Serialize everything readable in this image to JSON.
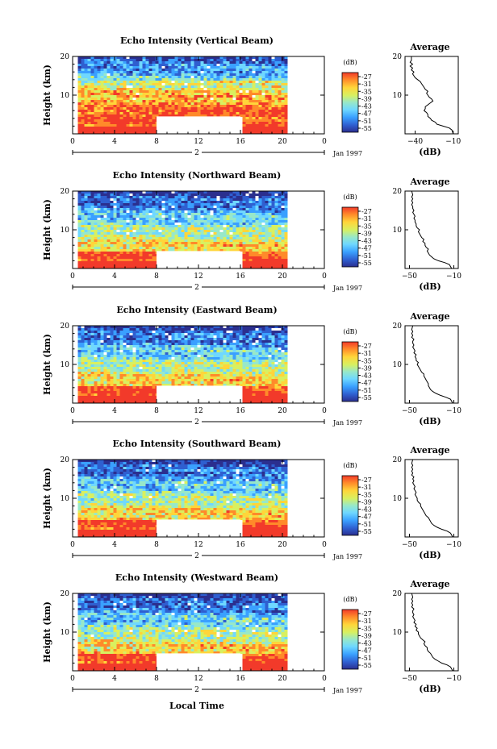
{
  "figure": {
    "bottom_label": "Local Time",
    "date_label": "Jan 1997"
  },
  "chart_data": [
    {
      "type": "heatmap",
      "title": "Echo Intensity (Vertical Beam)",
      "ylabel": "Height (km)",
      "x_ticks": [
        "0",
        "4",
        "8",
        "12",
        "16",
        "20",
        "0"
      ],
      "day_label": "2",
      "y_ticks": [
        "20",
        "10"
      ],
      "xlim": [
        0,
        24
      ],
      "ylim": [
        0,
        20
      ],
      "data_x_range": [
        0.5,
        20.5
      ],
      "gap": {
        "x": [
          8,
          16
        ],
        "y": [
          0,
          4.5
        ]
      },
      "colorbar": {
        "unit": "(dB)",
        "ticks": [
          "-27",
          "-31",
          "-35",
          "-39",
          "-43",
          "-47",
          "-51",
          "-55"
        ]
      },
      "average": {
        "title": "Average",
        "xlabel": "(dB)",
        "xticks": [
          "-40",
          "-10"
        ],
        "xlim": [
          -48,
          -6
        ],
        "yticks": [
          "20",
          "10"
        ],
        "profile": [
          [
            -10,
            0
          ],
          [
            -11,
            1
          ],
          [
            -13,
            1.5
          ],
          [
            -18,
            2
          ],
          [
            -23,
            2.5
          ],
          [
            -24,
            3
          ],
          [
            -27,
            3.5
          ],
          [
            -28,
            4
          ],
          [
            -30,
            4.5
          ],
          [
            -30,
            5
          ],
          [
            -31,
            5.5
          ],
          [
            -33,
            6
          ],
          [
            -32,
            6.5
          ],
          [
            -32,
            7
          ],
          [
            -30,
            7.5
          ],
          [
            -28,
            8
          ],
          [
            -26,
            8.5
          ],
          [
            -27,
            9
          ],
          [
            -29,
            9.5
          ],
          [
            -30,
            10
          ],
          [
            -31,
            10.5
          ],
          [
            -30,
            11
          ],
          [
            -32,
            11.5
          ],
          [
            -33,
            12
          ],
          [
            -34,
            12.5
          ],
          [
            -35,
            13
          ],
          [
            -36,
            13.5
          ],
          [
            -38,
            14
          ],
          [
            -40,
            14.5
          ],
          [
            -41,
            15
          ],
          [
            -42,
            15.5
          ],
          [
            -41,
            16
          ],
          [
            -43,
            16.5
          ],
          [
            -42,
            17
          ],
          [
            -44,
            17.5
          ],
          [
            -42,
            18
          ],
          [
            -44,
            18.5
          ],
          [
            -43,
            19
          ],
          [
            -43,
            20
          ]
        ]
      }
    },
    {
      "type": "heatmap",
      "title": "Echo Intensity (Northward Beam)",
      "ylabel": "Height (km)",
      "x_ticks": [
        "0",
        "4",
        "8",
        "12",
        "16",
        "20",
        "0"
      ],
      "day_label": "2",
      "y_ticks": [
        "20",
        "10"
      ],
      "xlim": [
        0,
        24
      ],
      "ylim": [
        0,
        20
      ],
      "data_x_range": [
        0.5,
        20.5
      ],
      "gap": {
        "x": [
          8,
          16
        ],
        "y": [
          0,
          4.5
        ]
      },
      "colorbar": {
        "unit": "(dB)",
        "ticks": [
          "-27",
          "-31",
          "-35",
          "-39",
          "-43",
          "-47",
          "-51",
          "-55"
        ]
      },
      "average": {
        "title": "Average",
        "xlabel": "(dB)",
        "xticks": [
          "-50",
          "-10"
        ],
        "xlim": [
          -54,
          -6
        ],
        "yticks": [
          "20",
          "10"
        ],
        "profile": [
          [
            -12,
            0
          ],
          [
            -14,
            1
          ],
          [
            -18,
            1.5
          ],
          [
            -24,
            2
          ],
          [
            -28,
            2.5
          ],
          [
            -30,
            3
          ],
          [
            -32,
            3.5
          ],
          [
            -33,
            4
          ],
          [
            -34,
            4.5
          ],
          [
            -33,
            5
          ],
          [
            -35,
            5.5
          ],
          [
            -36,
            6
          ],
          [
            -36,
            6.5
          ],
          [
            -38,
            7
          ],
          [
            -37,
            7.5
          ],
          [
            -39,
            8
          ],
          [
            -40,
            8.5
          ],
          [
            -41,
            9
          ],
          [
            -42,
            9.5
          ],
          [
            -41,
            10
          ],
          [
            -43,
            10.5
          ],
          [
            -44,
            11
          ],
          [
            -44,
            11.5
          ],
          [
            -45,
            12
          ],
          [
            -45,
            12.5
          ],
          [
            -46,
            13
          ],
          [
            -45,
            13.5
          ],
          [
            -46,
            14
          ],
          [
            -47,
            14.5
          ],
          [
            -46,
            15
          ],
          [
            -47,
            15.5
          ],
          [
            -47,
            16
          ],
          [
            -48,
            16.5
          ],
          [
            -47,
            17
          ],
          [
            -48,
            17.5
          ],
          [
            -47,
            18
          ],
          [
            -48,
            18.5
          ],
          [
            -47,
            19
          ],
          [
            -48,
            20
          ]
        ]
      }
    },
    {
      "type": "heatmap",
      "title": "Echo Intensity (Eastward Beam)",
      "ylabel": "Height (km)",
      "x_ticks": [
        "0",
        "4",
        "8",
        "12",
        "16",
        "20",
        "0"
      ],
      "day_label": "2",
      "y_ticks": [
        "20",
        "10"
      ],
      "xlim": [
        0,
        24
      ],
      "ylim": [
        0,
        20
      ],
      "data_x_range": [
        0.5,
        20.5
      ],
      "gap": {
        "x": [
          8,
          16
        ],
        "y": [
          0,
          4.5
        ]
      },
      "colorbar": {
        "unit": "(dB)",
        "ticks": [
          "-27",
          "-31",
          "-35",
          "-39",
          "-43",
          "-47",
          "-51",
          "-55"
        ]
      },
      "average": {
        "title": "Average",
        "xlabel": "(dB)",
        "xticks": [
          "-50",
          "-10"
        ],
        "xlim": [
          -54,
          -6
        ],
        "yticks": [
          "20",
          "10"
        ],
        "profile": [
          [
            -11,
            0
          ],
          [
            -13,
            1
          ],
          [
            -17,
            1.5
          ],
          [
            -22,
            2
          ],
          [
            -26,
            2.5
          ],
          [
            -29,
            3
          ],
          [
            -31,
            3.5
          ],
          [
            -32,
            4
          ],
          [
            -33,
            4.5
          ],
          [
            -33,
            5
          ],
          [
            -34,
            5.5
          ],
          [
            -35,
            6
          ],
          [
            -36,
            6.5
          ],
          [
            -37,
            7
          ],
          [
            -37,
            7.5
          ],
          [
            -39,
            8
          ],
          [
            -40,
            8.5
          ],
          [
            -41,
            9
          ],
          [
            -42,
            9.5
          ],
          [
            -43,
            10
          ],
          [
            -42,
            10.5
          ],
          [
            -44,
            11
          ],
          [
            -44,
            11.5
          ],
          [
            -45,
            12
          ],
          [
            -44,
            12.5
          ],
          [
            -46,
            13
          ],
          [
            -45,
            13.5
          ],
          [
            -46,
            14
          ],
          [
            -47,
            14.5
          ],
          [
            -46,
            15
          ],
          [
            -47,
            15.5
          ],
          [
            -47,
            16
          ],
          [
            -46,
            16.5
          ],
          [
            -48,
            17
          ],
          [
            -47,
            17.5
          ],
          [
            -48,
            18
          ],
          [
            -47,
            18.5
          ],
          [
            -48,
            19
          ],
          [
            -47,
            20
          ]
        ]
      }
    },
    {
      "type": "heatmap",
      "title": "Echo Intensity (Southward Beam)",
      "ylabel": "Height (km)",
      "x_ticks": [
        "0",
        "4",
        "8",
        "12",
        "16",
        "20",
        "0"
      ],
      "day_label": "2",
      "y_ticks": [
        "20",
        "10"
      ],
      "xlim": [
        0,
        24
      ],
      "ylim": [
        0,
        20
      ],
      "data_x_range": [
        0.5,
        20.5
      ],
      "gap": {
        "x": [
          8,
          16
        ],
        "y": [
          0,
          4.5
        ]
      },
      "colorbar": {
        "unit": "(dB)",
        "ticks": [
          "-27",
          "-31",
          "-35",
          "-39",
          "-43",
          "-47",
          "-51",
          "-55"
        ]
      },
      "average": {
        "title": "Average",
        "xlabel": "(dB)",
        "xticks": [
          "-50",
          "-10"
        ],
        "xlim": [
          -54,
          -6
        ],
        "yticks": [
          "20",
          "10"
        ],
        "profile": [
          [
            -11,
            0
          ],
          [
            -13,
            1
          ],
          [
            -16,
            1.5
          ],
          [
            -21,
            2
          ],
          [
            -25,
            2.5
          ],
          [
            -28,
            3
          ],
          [
            -30,
            3.5
          ],
          [
            -31,
            4
          ],
          [
            -32,
            4.5
          ],
          [
            -33,
            5
          ],
          [
            -35,
            5.5
          ],
          [
            -36,
            6
          ],
          [
            -37,
            6.5
          ],
          [
            -38,
            7
          ],
          [
            -39,
            7.5
          ],
          [
            -40,
            8
          ],
          [
            -40,
            8.5
          ],
          [
            -42,
            9
          ],
          [
            -43,
            9.5
          ],
          [
            -43,
            10
          ],
          [
            -44,
            10.5
          ],
          [
            -45,
            11
          ],
          [
            -44,
            11.5
          ],
          [
            -45,
            12
          ],
          [
            -46,
            12.5
          ],
          [
            -45,
            13
          ],
          [
            -46,
            13.5
          ],
          [
            -47,
            14
          ],
          [
            -46,
            14.5
          ],
          [
            -47,
            15
          ],
          [
            -46,
            15.5
          ],
          [
            -48,
            16
          ],
          [
            -47,
            16.5
          ],
          [
            -48,
            17
          ],
          [
            -47,
            17.5
          ],
          [
            -48,
            18
          ],
          [
            -47,
            18.5
          ],
          [
            -48,
            19
          ],
          [
            -47,
            20
          ]
        ]
      }
    },
    {
      "type": "heatmap",
      "title": "Echo Intensity (Westward Beam)",
      "ylabel": "Height (km)",
      "x_ticks": [
        "0",
        "4",
        "8",
        "12",
        "16",
        "20",
        "0"
      ],
      "day_label": "2",
      "y_ticks": [
        "20",
        "10"
      ],
      "xlim": [
        0,
        24
      ],
      "ylim": [
        0,
        20
      ],
      "data_x_range": [
        0.5,
        20.5
      ],
      "gap": {
        "x": [
          8,
          16
        ],
        "y": [
          0,
          4.5
        ]
      },
      "colorbar": {
        "unit": "(dB)",
        "ticks": [
          "-27",
          "-31",
          "-35",
          "-39",
          "-43",
          "-47",
          "-51",
          "-55"
        ]
      },
      "average": {
        "title": "Average",
        "xlabel": "(dB)",
        "xticks": [
          "-50",
          "-10"
        ],
        "xlim": [
          -54,
          -6
        ],
        "yticks": [
          "20",
          "10"
        ],
        "profile": [
          [
            -11,
            0
          ],
          [
            -13,
            1
          ],
          [
            -16,
            1.5
          ],
          [
            -21,
            2
          ],
          [
            -24,
            2.5
          ],
          [
            -27,
            3
          ],
          [
            -29,
            3.5
          ],
          [
            -30,
            4
          ],
          [
            -31,
            4.5
          ],
          [
            -33,
            5
          ],
          [
            -34,
            5.5
          ],
          [
            -34,
            6
          ],
          [
            -36,
            6.5
          ],
          [
            -37,
            7
          ],
          [
            -36,
            7.5
          ],
          [
            -38,
            8
          ],
          [
            -40,
            8.5
          ],
          [
            -41,
            9
          ],
          [
            -42,
            9.5
          ],
          [
            -42,
            10
          ],
          [
            -44,
            10.5
          ],
          [
            -43,
            11
          ],
          [
            -45,
            11.5
          ],
          [
            -44,
            12
          ],
          [
            -46,
            12.5
          ],
          [
            -45,
            13
          ],
          [
            -46,
            13.5
          ],
          [
            -47,
            14
          ],
          [
            -46,
            14.5
          ],
          [
            -47,
            15
          ],
          [
            -47,
            15.5
          ],
          [
            -46,
            16
          ],
          [
            -48,
            16.5
          ],
          [
            -47,
            17
          ],
          [
            -48,
            17.5
          ],
          [
            -47,
            18
          ],
          [
            -48,
            18.5
          ],
          [
            -47,
            19
          ],
          [
            -48,
            20
          ]
        ]
      }
    }
  ]
}
